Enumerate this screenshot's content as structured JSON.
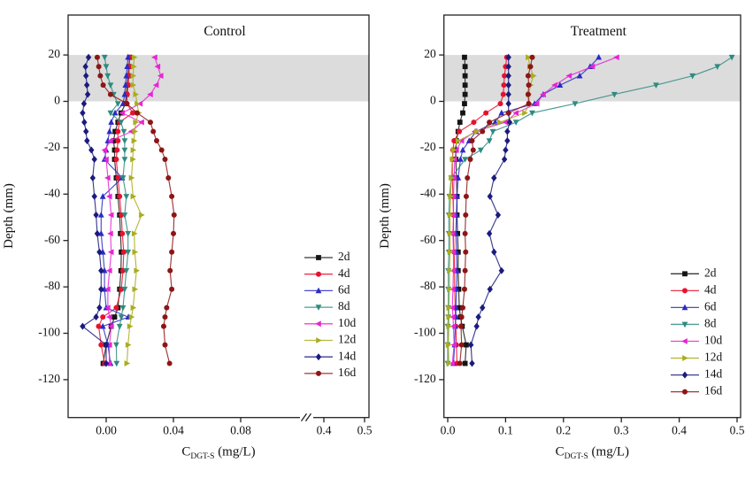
{
  "figure": {
    "kind": "dual-panel sediment depth profile line chart",
    "y_axis": {
      "label": "Depth (mm)",
      "ticks": [
        20,
        0,
        -20,
        -40,
        -60,
        -80,
        -100,
        -120
      ],
      "range_mm": [
        -137,
        36
      ]
    },
    "shaded_band": {
      "depth_from_mm": 0,
      "depth_to_mm": 20,
      "color": "#dcdcdc"
    },
    "x_axis_label": {
      "main": "C",
      "subscript": "DGT-S",
      "units": " (mg/L)"
    },
    "legend_labels": [
      "2d",
      "4d",
      "6d",
      "8d",
      "10d",
      "12d",
      "14d",
      "16d"
    ],
    "series_style": [
      {
        "name": "2d",
        "color": "#141414",
        "marker": "square"
      },
      {
        "name": "4d",
        "color": "#e8112d",
        "marker": "circle"
      },
      {
        "name": "6d",
        "color": "#2b2bc4",
        "marker": "triangle-up"
      },
      {
        "name": "8d",
        "color": "#2e8b80",
        "marker": "triangle-down"
      },
      {
        "name": "10d",
        "color": "#e824d4",
        "marker": "triangle-left"
      },
      {
        "name": "12d",
        "color": "#a9ad1f",
        "marker": "triangle-right"
      },
      {
        "name": "14d",
        "color": "#1b1b7e",
        "marker": "diamond"
      },
      {
        "name": "16d",
        "color": "#8e1515",
        "marker": "circle"
      }
    ],
    "axis_color": "#222222"
  },
  "chart_data": [
    {
      "type": "line",
      "title": "Control",
      "xlabel": "C_DGT-S (mg/L)",
      "ylabel": "Depth (mm)",
      "x_ticks": [
        "0.00",
        "0.04",
        "0.08",
        "0.4",
        "0.5"
      ],
      "x_axis_break_between": [
        0.09,
        0.38
      ],
      "xlim": [
        -0.023,
        0.51
      ],
      "depths_mm": [
        19,
        15,
        11,
        7,
        3,
        -1,
        -5,
        -9,
        -13,
        -17,
        -21,
        -25,
        -33,
        -41,
        -49,
        -57,
        -65,
        -73,
        -81,
        -89,
        -93,
        -97,
        -105,
        -113
      ],
      "series": [
        {
          "name": "2d",
          "values_mg_per_L": [
            0.014,
            0.0135,
            0.013,
            0.0125,
            0.012,
            0.0115,
            0.0088,
            0.007,
            0.0053,
            0.0044,
            0.005,
            0.005,
            0.006,
            0.007,
            0.008,
            0.0085,
            0.009,
            0.0088,
            0.008,
            0.007,
            0.005,
            0.003,
            0.0,
            -0.0018
          ]
        },
        {
          "name": "4d",
          "values_mg_per_L": [
            0.014,
            0.0137,
            0.0135,
            0.013,
            0.0125,
            0.0123,
            0.0158,
            0.0079,
            0.007,
            0.007,
            0.0065,
            0.006,
            0.007,
            0.008,
            0.009,
            0.0096,
            0.0105,
            0.01,
            0.009,
            0.006,
            -0.002,
            -0.0045,
            -0.003,
            -0.0009
          ]
        },
        {
          "name": "6d",
          "values_mg_per_L": [
            0.013,
            0.0125,
            0.012,
            0.0115,
            0.011,
            0.01,
            0.0053,
            0.003,
            0.002,
            0.001,
            0.0,
            -0.001,
            0.0095,
            -0.002,
            -0.003,
            -0.003,
            -0.002,
            -0.001,
            -0.001,
            0.0,
            0.0132,
            -0.002,
            0.001,
            0.0026
          ]
        },
        {
          "name": "8d",
          "values_mg_per_L": [
            -0.0009,
            0.0,
            0.0009,
            0.0026,
            0.0044,
            0.007,
            0.0026,
            0.0088,
            0.0105,
            0.011,
            0.011,
            0.011,
            0.01,
            0.012,
            0.011,
            0.013,
            0.013,
            0.012,
            0.011,
            0.01,
            0.009,
            0.008,
            0.006,
            0.0062
          ]
        },
        {
          "name": "10d",
          "values_mg_per_L": [
            0.0289,
            0.0307,
            0.0325,
            0.0298,
            0.0263,
            0.0202,
            0.0096,
            0.0211,
            0.015,
            0.0026,
            -0.0009,
            0.0,
            0.001,
            0.002,
            0.003,
            0.0026,
            0.003,
            0.002,
            0.001,
            0.001,
            0.002,
            0.003,
            0.002,
            0.0018
          ]
        },
        {
          "name": "12d",
          "values_mg_per_L": [
            0.0167,
            0.0163,
            0.016,
            0.016,
            0.0175,
            0.0184,
            0.0193,
            0.0175,
            0.017,
            0.0165,
            0.016,
            0.0158,
            0.015,
            0.016,
            0.021,
            0.0167,
            0.017,
            0.018,
            0.017,
            0.016,
            0.015,
            0.014,
            0.013,
            0.0123
          ]
        },
        {
          "name": "14d",
          "values_mg_per_L": [
            -0.0105,
            -0.0123,
            -0.012,
            -0.0115,
            -0.011,
            -0.0132,
            -0.014,
            -0.013,
            -0.012,
            -0.0114,
            -0.0088,
            -0.007,
            -0.008,
            -0.007,
            -0.006,
            -0.0053,
            -0.004,
            -0.003,
            -0.003,
            -0.004,
            -0.006,
            -0.014,
            0.0,
            0.0
          ]
        },
        {
          "name": "16d",
          "values_mg_per_L": [
            -0.0053,
            -0.0044,
            -0.0035,
            -0.0018,
            0.0026,
            0.0123,
            0.0184,
            0.0263,
            0.028,
            0.03,
            0.033,
            0.035,
            0.037,
            0.039,
            0.0404,
            0.04,
            0.039,
            0.038,
            0.039,
            0.036,
            0.035,
            0.0342,
            0.035,
            0.0377
          ]
        }
      ]
    },
    {
      "type": "line",
      "title": "Treatment",
      "xlabel": "C_DGT-S (mg/L)",
      "ylabel": "Depth (mm)",
      "x_ticks": [
        "0.0",
        "0.1",
        "0.2",
        "0.3",
        "0.4",
        "0.5"
      ],
      "xlim": [
        -0.008,
        0.506
      ],
      "depths_mm": [
        19,
        15,
        11,
        7,
        3,
        -1,
        -5,
        -9,
        -13,
        -17,
        -21,
        -25,
        -33,
        -41,
        -49,
        -57,
        -65,
        -73,
        -81,
        -89,
        -93,
        -97,
        -105,
        -113
      ],
      "series": [
        {
          "name": "2d",
          "values_mg_per_L": [
            0.029,
            0.03,
            0.03,
            0.03,
            0.03,
            0.029,
            0.026,
            0.021,
            0.018,
            0.015,
            0.014,
            0.014,
            0.015,
            0.016,
            0.016,
            0.017,
            0.018,
            0.018,
            0.019,
            0.02,
            0.022,
            0.025,
            0.032,
            0.03
          ]
        },
        {
          "name": "4d",
          "values_mg_per_L": [
            0.102,
            0.1,
            0.098,
            0.097,
            0.096,
            0.091,
            0.066,
            0.045,
            0.02,
            0.011,
            0.009,
            0.008,
            0.008,
            0.009,
            0.01,
            0.01,
            0.011,
            0.012,
            0.012,
            0.013,
            0.013,
            0.014,
            0.015,
            0.016
          ]
        },
        {
          "name": "6d",
          "values_mg_per_L": [
            0.261,
            0.246,
            0.228,
            0.194,
            0.165,
            0.15,
            0.093,
            0.082,
            0.049,
            0.037,
            0.026,
            0.022,
            0.018,
            0.016,
            0.015,
            0.014,
            0.015,
            0.016,
            0.015,
            0.014,
            0.014,
            0.013,
            0.012,
            0.01
          ]
        },
        {
          "name": "8d",
          "values_mg_per_L": [
            0.491,
            0.466,
            0.423,
            0.36,
            0.288,
            0.22,
            0.146,
            0.118,
            0.078,
            0.072,
            0.057,
            0.03,
            0.006,
            0.003,
            0.002,
            0.002,
            0.002,
            0.001,
            0.001,
            0.001,
            0.001,
            0.0,
            0.0,
            0.0
          ]
        },
        {
          "name": "10d",
          "values_mg_per_L": [
            0.292,
            0.25,
            0.21,
            0.185,
            0.165,
            0.154,
            0.118,
            0.1,
            0.047,
            0.024,
            0.015,
            0.012,
            0.011,
            0.01,
            0.01,
            0.009,
            0.01,
            0.01,
            0.009,
            0.008,
            0.009,
            0.01,
            0.011,
            0.008
          ]
        },
        {
          "name": "12d",
          "values_mg_per_L": [
            0.139,
            0.142,
            0.148,
            0.143,
            0.14,
            0.141,
            0.133,
            0.09,
            0.05,
            0.018,
            0.01,
            0.008,
            0.006,
            0.005,
            0.004,
            0.004,
            0.004,
            0.003,
            0.003,
            0.002,
            0.002,
            0.002,
            0.001,
            0.002
          ]
        },
        {
          "name": "14d",
          "values_mg_per_L": [
            0.105,
            0.105,
            0.105,
            0.105,
            0.105,
            0.105,
            0.105,
            0.107,
            0.103,
            0.103,
            0.1,
            0.098,
            0.08,
            0.073,
            0.087,
            0.072,
            0.08,
            0.093,
            0.073,
            0.06,
            0.053,
            0.05,
            0.04,
            0.042
          ]
        },
        {
          "name": "16d",
          "values_mg_per_L": [
            0.146,
            0.143,
            0.139,
            0.14,
            0.139,
            0.14,
            0.105,
            0.072,
            0.06,
            0.042,
            0.044,
            0.039,
            0.034,
            0.032,
            0.031,
            0.03,
            0.031,
            0.03,
            0.029,
            0.026,
            0.024,
            0.023,
            0.024,
            0.021
          ]
        }
      ]
    }
  ]
}
